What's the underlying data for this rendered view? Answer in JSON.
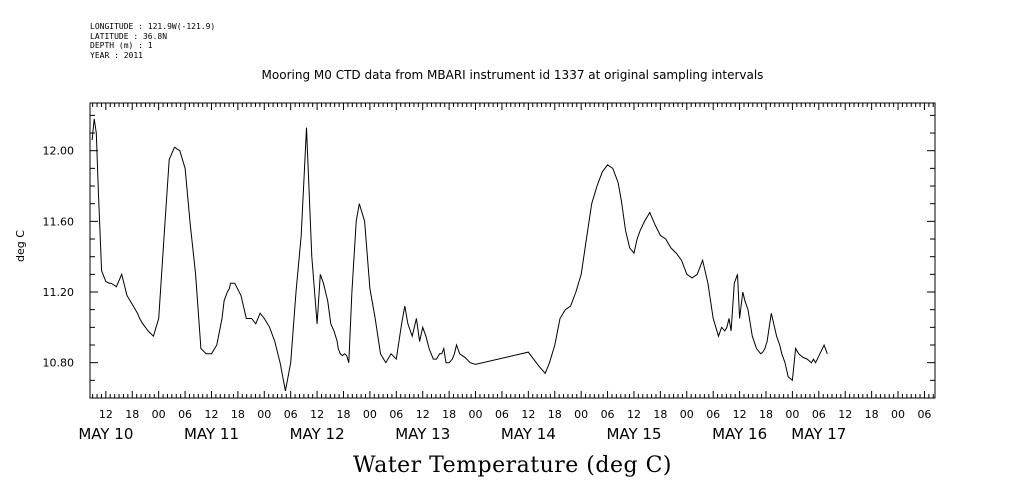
{
  "header": {
    "longitude": "LONGITUDE : 121.9W(-121.9)",
    "latitude": "LATITUDE : 36.8N",
    "depth": "DEPTH (m) : 1",
    "year": "YEAR : 2011"
  },
  "chart_data": {
    "type": "line",
    "title": "Mooring M0 CTD data from MBARI instrument id 1337 at original sampling intervals",
    "xlabel": "Water Temperature (deg C)",
    "ylabel": "deg C",
    "xlim": [
      9.35,
      17.35
    ],
    "ylim": [
      10.6,
      12.27
    ],
    "yticks": [
      10.8,
      11.2,
      11.6,
      12.0
    ],
    "ytick_labels": [
      "10.80",
      "11.20",
      "11.60",
      "12.00"
    ],
    "hour_labels": [
      {
        "x": 9.5,
        "label": "12"
      },
      {
        "x": 9.75,
        "label": "18"
      },
      {
        "x": 10.0,
        "label": "00"
      },
      {
        "x": 10.25,
        "label": "06"
      },
      {
        "x": 10.5,
        "label": "12"
      },
      {
        "x": 10.75,
        "label": "18"
      },
      {
        "x": 11.0,
        "label": "00"
      },
      {
        "x": 11.25,
        "label": "06"
      },
      {
        "x": 11.5,
        "label": "12"
      },
      {
        "x": 11.75,
        "label": "18"
      },
      {
        "x": 12.0,
        "label": "00"
      },
      {
        "x": 12.25,
        "label": "06"
      },
      {
        "x": 12.5,
        "label": "12"
      },
      {
        "x": 12.75,
        "label": "18"
      },
      {
        "x": 13.0,
        "label": "00"
      },
      {
        "x": 13.25,
        "label": "06"
      },
      {
        "x": 13.5,
        "label": "12"
      },
      {
        "x": 13.75,
        "label": "18"
      },
      {
        "x": 14.0,
        "label": "00"
      },
      {
        "x": 14.25,
        "label": "06"
      },
      {
        "x": 14.5,
        "label": "12"
      },
      {
        "x": 14.75,
        "label": "18"
      },
      {
        "x": 15.0,
        "label": "00"
      },
      {
        "x": 15.25,
        "label": "06"
      },
      {
        "x": 15.5,
        "label": "12"
      },
      {
        "x": 15.75,
        "label": "18"
      },
      {
        "x": 16.0,
        "label": "00"
      },
      {
        "x": 16.25,
        "label": "06"
      },
      {
        "x": 16.5,
        "label": "12"
      },
      {
        "x": 16.75,
        "label": "18"
      },
      {
        "x": 17.0,
        "label": "00"
      },
      {
        "x": 17.25,
        "label": "06"
      }
    ],
    "day_labels": [
      {
        "x": 9.5,
        "label": "MAY 10"
      },
      {
        "x": 10.5,
        "label": "MAY 11"
      },
      {
        "x": 11.5,
        "label": "MAY 12"
      },
      {
        "x": 12.5,
        "label": "MAY 13"
      },
      {
        "x": 13.5,
        "label": "MAY 14"
      },
      {
        "x": 14.5,
        "label": "MAY 15"
      },
      {
        "x": 15.5,
        "label": "MAY 16"
      },
      {
        "x": 16.25,
        "label": "MAY 17"
      }
    ],
    "grid": false,
    "series": [
      {
        "x": [
          9.37,
          9.39,
          9.41,
          9.43,
          9.46,
          9.5,
          9.53,
          9.55,
          9.6,
          9.65,
          9.7,
          9.75,
          9.78,
          9.8,
          9.82,
          9.85,
          9.9,
          9.95,
          10.0,
          10.05,
          10.1,
          10.15,
          10.2,
          10.25,
          10.3,
          10.35,
          10.4,
          10.45,
          10.5,
          10.55,
          10.6,
          10.62,
          10.65,
          10.67,
          10.68,
          10.72,
          10.78,
          10.83,
          10.88,
          10.92,
          10.96,
          11.0,
          11.05,
          11.1,
          11.15,
          11.2,
          11.25,
          11.3,
          11.35,
          11.4,
          11.45,
          11.5,
          11.53,
          11.56,
          11.6,
          11.63,
          11.66,
          11.69,
          11.7,
          11.72,
          11.74,
          11.76,
          11.78,
          11.8,
          11.83,
          11.87,
          11.9,
          11.95,
          12.0,
          12.05,
          12.1,
          12.15,
          12.2,
          12.25,
          12.3,
          12.33,
          12.36,
          12.4,
          12.44,
          12.47,
          12.5,
          12.53,
          12.56,
          12.6,
          12.63,
          12.66,
          12.68,
          12.7,
          12.72,
          12.75,
          12.78,
          12.8,
          12.82,
          12.85,
          12.9,
          12.95,
          13.0,
          13.5,
          13.6,
          13.66,
          13.7,
          13.75,
          13.8,
          13.85,
          13.9,
          13.95,
          14.0,
          14.05,
          14.1,
          14.15,
          14.2,
          14.25,
          14.3,
          14.35,
          14.38,
          14.42,
          14.46,
          14.5,
          14.53,
          14.56,
          14.6,
          14.65,
          14.7,
          14.75,
          14.8,
          14.85,
          14.9,
          14.95,
          15.0,
          15.05,
          15.1,
          15.15,
          15.2,
          15.25,
          15.3,
          15.33,
          15.36,
          15.38,
          15.4,
          15.42,
          15.45,
          15.48,
          15.5,
          15.53,
          15.55,
          15.58,
          15.62,
          15.66,
          15.7,
          15.72,
          15.74,
          15.76,
          15.8,
          15.85,
          15.88,
          15.9,
          15.93,
          15.96,
          16.0,
          16.03,
          16.06,
          16.1,
          16.14,
          16.18,
          16.2,
          16.22,
          16.26,
          16.3,
          16.33
        ],
        "y": [
          12.06,
          12.18,
          12.1,
          11.75,
          11.32,
          11.26,
          11.25,
          11.25,
          11.23,
          11.3,
          11.18,
          11.13,
          11.1,
          11.08,
          11.05,
          11.02,
          10.98,
          10.95,
          11.05,
          11.5,
          11.95,
          12.02,
          12.0,
          11.9,
          11.58,
          11.3,
          10.88,
          10.85,
          10.85,
          10.9,
          11.05,
          11.15,
          11.2,
          11.22,
          11.25,
          11.25,
          11.18,
          11.05,
          11.05,
          11.02,
          11.08,
          11.05,
          11.0,
          10.92,
          10.8,
          10.64,
          10.8,
          11.2,
          11.52,
          12.13,
          11.4,
          11.02,
          11.3,
          11.25,
          11.15,
          11.02,
          10.98,
          10.92,
          10.88,
          10.85,
          10.84,
          10.85,
          10.84,
          10.8,
          11.2,
          11.6,
          11.7,
          11.6,
          11.22,
          11.05,
          10.85,
          10.8,
          10.85,
          10.82,
          11.02,
          11.12,
          11.02,
          10.95,
          11.05,
          10.92,
          11.0,
          10.95,
          10.88,
          10.82,
          10.82,
          10.85,
          10.85,
          10.88,
          10.8,
          10.8,
          10.82,
          10.85,
          10.9,
          10.85,
          10.83,
          10.8,
          10.79,
          10.86,
          10.78,
          10.74,
          10.8,
          10.9,
          11.05,
          11.1,
          11.12,
          11.2,
          11.3,
          11.5,
          11.7,
          11.8,
          11.88,
          11.92,
          11.9,
          11.82,
          11.72,
          11.55,
          11.45,
          11.42,
          11.5,
          11.55,
          11.6,
          11.65,
          11.58,
          11.52,
          11.5,
          11.45,
          11.42,
          11.38,
          11.3,
          11.28,
          11.3,
          11.38,
          11.25,
          11.05,
          10.95,
          11.0,
          10.98,
          11.0,
          11.05,
          10.98,
          11.25,
          11.3,
          11.05,
          11.2,
          11.15,
          11.1,
          10.95,
          10.88,
          10.85,
          10.86,
          10.88,
          10.92,
          11.08,
          10.95,
          10.9,
          10.85,
          10.8,
          10.72,
          10.7,
          10.88,
          10.85,
          10.83,
          10.82,
          10.8,
          10.82,
          10.8,
          10.85,
          10.9,
          10.85
        ]
      }
    ]
  }
}
